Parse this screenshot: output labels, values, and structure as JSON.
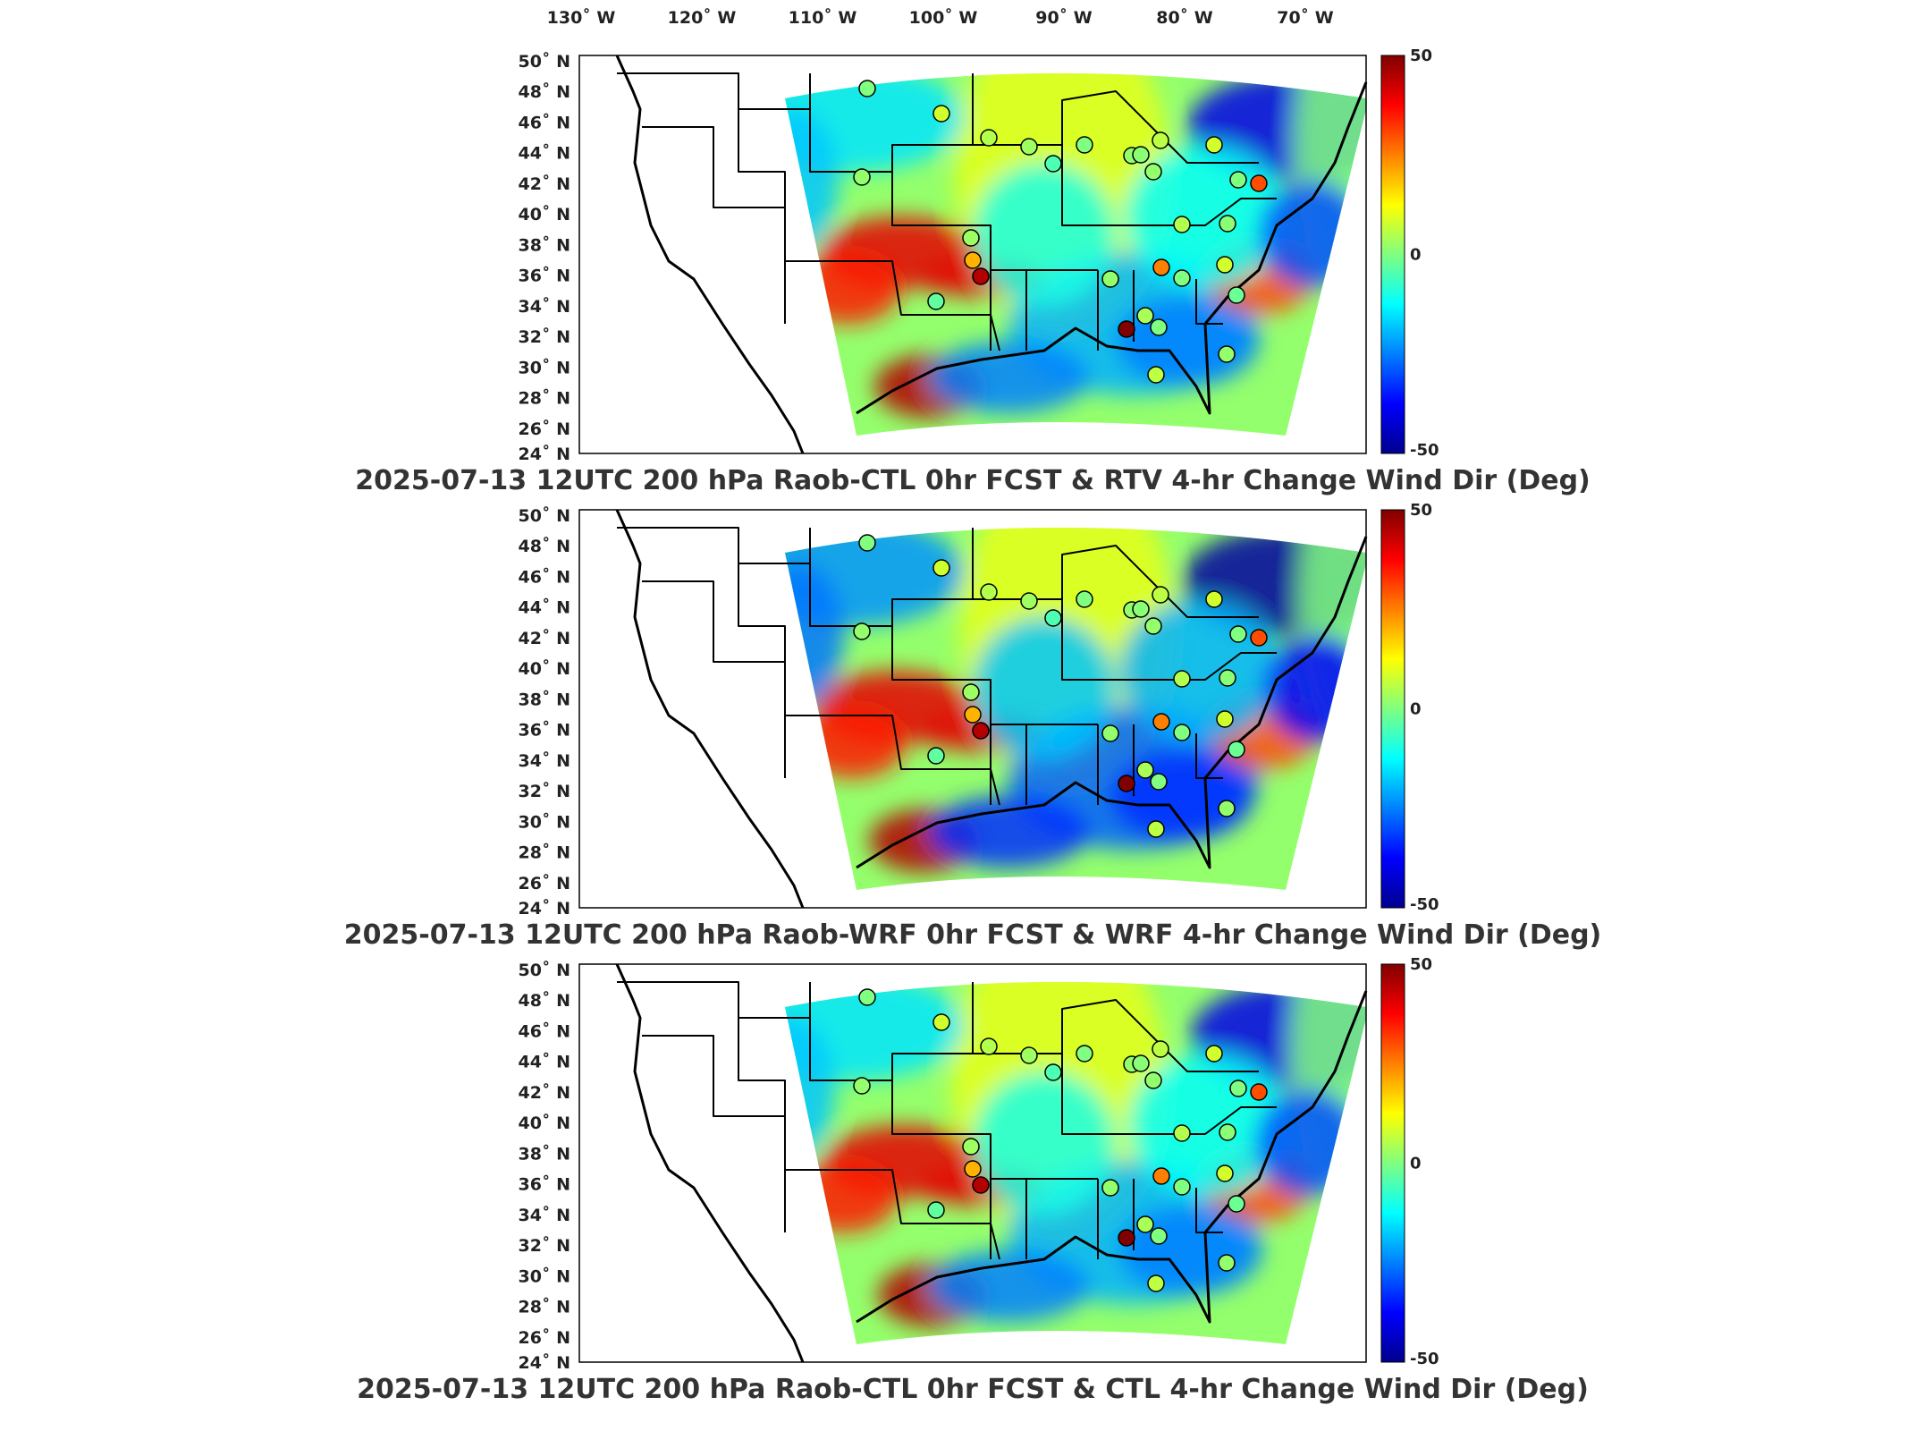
{
  "figure": {
    "lon_ticks": [
      "130˚ W",
      "120˚ W",
      "110˚ W",
      "100˚ W",
      "90˚ W",
      "80˚ W",
      "70˚ W"
    ],
    "lat_ticks": [
      "50˚ N",
      "48˚ N",
      "46˚ N",
      "44˚ N",
      "42˚ N",
      "40˚ N",
      "38˚ N",
      "36˚ N",
      "34˚ N",
      "32˚ N",
      "30˚ N",
      "28˚ N",
      "26˚ N",
      "24˚ N"
    ],
    "colorbar": {
      "max": "50",
      "mid": "0",
      "min": "-50"
    },
    "colormap": [
      "#00008f",
      "#0000ff",
      "#0080ff",
      "#00ffff",
      "#80ff80",
      "#ffff00",
      "#ff8000",
      "#ff0000",
      "#800000"
    ]
  },
  "panels": [
    {
      "title": "2025-07-13 12UTC 200 hPa Raob-CTL 0hr FCST & RTV 4-hr Change Wind Dir (Deg)"
    },
    {
      "title": "2025-07-13 12UTC 200 hPa Raob-WRF 0hr FCST & WRF 4-hr Change Wind Dir (Deg)"
    },
    {
      "title": "2025-07-13 12UTC 200 hPa Raob-CTL 0hr FCST & CTL 4-hr Change Wind Dir (Deg)"
    }
  ],
  "stations": [
    {
      "name": "s1",
      "value": 0
    },
    {
      "name": "s2",
      "value": 8
    },
    {
      "name": "s3",
      "value": 5
    },
    {
      "name": "s4",
      "value": 2
    },
    {
      "name": "s5",
      "value": 3
    },
    {
      "name": "s6",
      "value": 0
    },
    {
      "name": "s7",
      "value": -5
    },
    {
      "name": "s8",
      "value": 2
    },
    {
      "name": "s9",
      "value": 1
    },
    {
      "name": "s10",
      "value": 6
    },
    {
      "name": "s11",
      "value": 8
    },
    {
      "name": "s12",
      "value": 0
    },
    {
      "name": "s13",
      "value": 2
    },
    {
      "name": "s14",
      "value": 30
    },
    {
      "name": "s15",
      "value": 5
    },
    {
      "name": "s16",
      "value": 1
    },
    {
      "name": "s17",
      "value": 20
    },
    {
      "name": "s18",
      "value": 45
    },
    {
      "name": "s19",
      "value": -3
    },
    {
      "name": "s20",
      "value": 3
    },
    {
      "name": "s21",
      "value": 25
    },
    {
      "name": "s22",
      "value": 2
    },
    {
      "name": "s23",
      "value": 0
    },
    {
      "name": "s24",
      "value": -2
    },
    {
      "name": "s25",
      "value": 8
    },
    {
      "name": "s26",
      "value": 55
    },
    {
      "name": "s27",
      "value": 4
    },
    {
      "name": "s28",
      "value": 0
    },
    {
      "name": "s29",
      "value": 2
    },
    {
      "name": "s30",
      "value": 6
    }
  ]
}
